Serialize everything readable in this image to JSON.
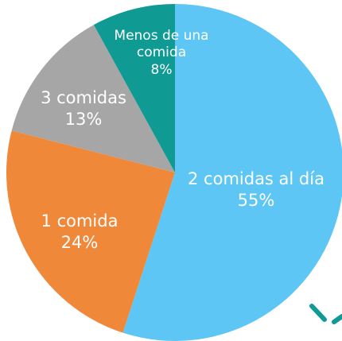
{
  "chart_data": {
    "type": "pie",
    "categories": [
      "2 comidas al día",
      "1 comida",
      "3 comidas",
      "Menos de una comida"
    ],
    "values": [
      55,
      24,
      13,
      8
    ],
    "value_labels": [
      "55%",
      "24%",
      "13%",
      "8%"
    ],
    "colors": [
      "#5ec6f4",
      "#f0883a",
      "#a6a6a6",
      "#0f9a94"
    ]
  }
}
